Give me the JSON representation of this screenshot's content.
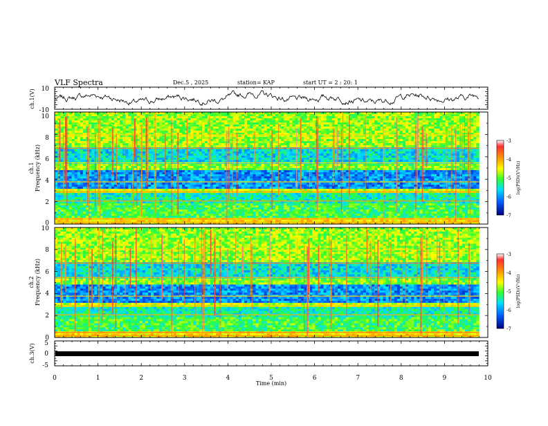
{
  "header": {
    "title": "VLF Spectra",
    "date": "Dec.5 , 2025",
    "station": "station= KAP",
    "start_ut": "start UT = 2 : 20: 1"
  },
  "chart_data": [
    {
      "type": "line",
      "name": "ch1-waveform",
      "ylabel": "ch.1(V)",
      "ylim": [
        -10,
        10
      ],
      "yticks": [
        "10",
        "-10"
      ],
      "xlim": [
        0,
        9.8
      ]
    },
    {
      "type": "heatmap",
      "name": "ch1-spectrogram",
      "ylabel": "ch.1",
      "ylabel2": "Frequency (kHz)",
      "ylim": [
        0,
        10
      ],
      "yticks": [
        "0",
        "2",
        "4",
        "6",
        "8",
        "10"
      ],
      "xlim": [
        0,
        9.8
      ],
      "colorbar": {
        "label": "log(PSD)(V²/Hz)",
        "range": [
          -7,
          -3
        ],
        "ticks": [
          "-3",
          "-4",
          "-5",
          "-6",
          "-7"
        ]
      }
    },
    {
      "type": "heatmap",
      "name": "ch2-spectrogram",
      "ylabel": "ch.2",
      "ylabel2": "Frequency (kHz)",
      "ylim": [
        0,
        10
      ],
      "yticks": [
        "0",
        "2",
        "4",
        "6",
        "8",
        "10"
      ],
      "xlim": [
        0,
        9.8
      ],
      "colorbar": {
        "label": "log(PSD)(V²/Hz)",
        "range": [
          -7,
          -3
        ],
        "ticks": [
          "-3",
          "-4",
          "-5",
          "-6",
          "-7"
        ]
      }
    },
    {
      "type": "line",
      "name": "ch3-waveform",
      "ylabel": "ch.3(V)",
      "ylim": [
        -5,
        5
      ],
      "yticks": [
        "5",
        "0",
        "-5"
      ],
      "xlim": [
        0,
        9.8
      ]
    }
  ],
  "x_axis": {
    "label": "Time (min)",
    "range": [
      0,
      10
    ],
    "ticks": [
      "0",
      "1",
      "2",
      "3",
      "4",
      "5",
      "6",
      "7",
      "8",
      "9",
      "10"
    ]
  }
}
